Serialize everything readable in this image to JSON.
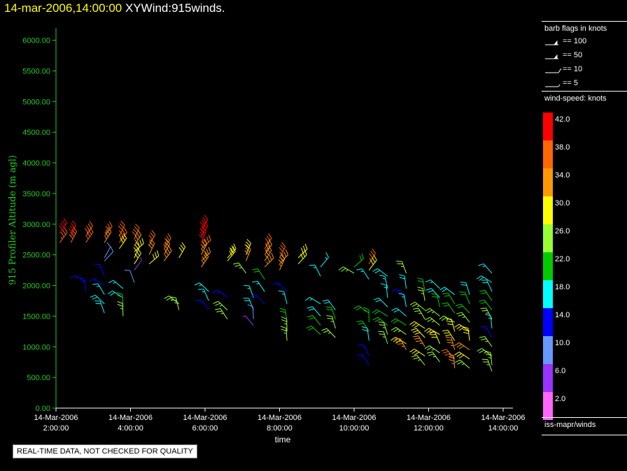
{
  "header": {
    "timestamp": "14-mar-2006,14:00:00",
    "product": "XYWind:915winds."
  },
  "colors": {
    "axis_y": "#22cc22",
    "axis_x": "#ffffff",
    "timestamp": "#ffff00",
    "background": "#000000"
  },
  "chart_data": {
    "type": "scatter",
    "ylabel": "915 Profiler Altitude (m agl)",
    "xlabel": "time",
    "ylim": [
      0,
      6200
    ],
    "y_ticks": [
      "0.00",
      "500.00",
      "1000.00",
      "1500.00",
      "2000.00",
      "2500.00",
      "3000.00",
      "3500.00",
      "4000.00",
      "4500.00",
      "5000.00",
      "5500.00",
      "6000.00"
    ],
    "x_ticks": [
      {
        "date": "14-Mar-2006",
        "time": "2:00:00"
      },
      {
        "date": "14-Mar-2006",
        "time": "4:00:00"
      },
      {
        "date": "14-Mar-2006",
        "time": "6:00:00"
      },
      {
        "date": "14-Mar-2006",
        "time": "8:00:00"
      },
      {
        "date": "14-Mar-2006",
        "time": "10:00:00"
      },
      {
        "date": "14-Mar-2006",
        "time": "12:00:00"
      },
      {
        "date": "14-Mar-2006",
        "time": "14:00:00"
      }
    ],
    "xlim_hours": [
      2.0,
      14.5
    ],
    "profiles": [
      {
        "t": 2.1,
        "levels": [
          [
            2850,
            40
          ],
          [
            2700,
            36
          ]
        ]
      },
      {
        "t": 2.4,
        "levels": [
          [
            2800,
            42
          ],
          [
            2700,
            38
          ]
        ]
      },
      {
        "t": 2.8,
        "levels": [
          [
            2800,
            38
          ],
          [
            2700,
            36
          ]
        ]
      },
      {
        "t": 2.8,
        "levels": [
          [
            2050,
            14
          ],
          [
            1900,
            14
          ]
        ]
      },
      {
        "t": 3.3,
        "levels": [
          [
            2800,
            36
          ],
          [
            2700,
            35
          ],
          [
            2450,
            8
          ],
          [
            2400,
            8
          ],
          [
            2150,
            14
          ],
          [
            2000,
            15
          ],
          [
            1850,
            16
          ],
          [
            1700,
            18
          ],
          [
            1550,
            18
          ]
        ]
      },
      {
        "t": 3.7,
        "levels": [
          [
            2800,
            36
          ],
          [
            2700,
            38
          ],
          [
            2600,
            30
          ]
        ]
      },
      {
        "t": 3.8,
        "levels": [
          [
            1950,
            16
          ],
          [
            1800,
            18
          ],
          [
            1650,
            22
          ],
          [
            1500,
            24
          ]
        ]
      },
      {
        "t": 4.1,
        "levels": [
          [
            2750,
            38
          ],
          [
            2650,
            34
          ],
          [
            2550,
            30
          ],
          [
            2450,
            30
          ],
          [
            2350,
            28
          ],
          [
            2250,
            6
          ],
          [
            2050,
            8
          ]
        ]
      },
      {
        "t": 4.5,
        "levels": [
          [
            2650,
            36
          ],
          [
            2500,
            32
          ],
          [
            2350,
            30
          ]
        ]
      },
      {
        "t": 4.9,
        "levels": [
          [
            2600,
            36
          ],
          [
            2500,
            34
          ],
          [
            2400,
            34
          ]
        ]
      },
      {
        "t": 5.3,
        "levels": [
          [
            2450,
            30
          ],
          [
            1700,
            24
          ],
          [
            1600,
            24
          ]
        ]
      },
      {
        "t": 5.9,
        "levels": [
          [
            2900,
            40
          ],
          [
            2800,
            42
          ],
          [
            2700,
            40
          ],
          [
            2600,
            38
          ],
          [
            2500,
            34
          ],
          [
            2400,
            32
          ],
          [
            2300,
            34
          ]
        ]
      },
      {
        "t": 6.1,
        "levels": [
          [
            1900,
            16
          ],
          [
            1750,
            16
          ],
          [
            1600,
            14
          ]
        ]
      },
      {
        "t": 6.6,
        "levels": [
          [
            2450,
            30
          ],
          [
            2400,
            28
          ],
          [
            1800,
            14
          ],
          [
            1600,
            24
          ],
          [
            1450,
            24
          ]
        ]
      },
      {
        "t": 7.1,
        "levels": [
          [
            2500,
            30
          ],
          [
            2400,
            32
          ],
          [
            2200,
            26
          ]
        ]
      },
      {
        "t": 7.3,
        "levels": [
          [
            1800,
            16
          ],
          [
            1600,
            18
          ],
          [
            1450,
            8
          ],
          [
            1350,
            6
          ]
        ]
      },
      {
        "t": 7.6,
        "levels": [
          [
            2600,
            36
          ],
          [
            2500,
            34
          ],
          [
            2400,
            34
          ],
          [
            2300,
            34
          ],
          [
            2100,
            22
          ],
          [
            1900,
            16
          ],
          [
            1700,
            14
          ]
        ]
      },
      {
        "t": 8.0,
        "levels": [
          [
            2450,
            36
          ],
          [
            2350,
            34
          ],
          [
            2250,
            34
          ]
        ]
      },
      {
        "t": 8.2,
        "levels": [
          [
            1900,
            14
          ],
          [
            1700,
            16
          ],
          [
            1400,
            22
          ],
          [
            1250,
            24
          ],
          [
            1100,
            24
          ]
        ]
      },
      {
        "t": 8.5,
        "levels": [
          [
            2450,
            30
          ],
          [
            2350,
            30
          ]
        ]
      },
      {
        "t": 9.1,
        "levels": [
          [
            2300,
            16
          ],
          [
            2150,
            16
          ],
          [
            1700,
            16
          ],
          [
            1500,
            18
          ],
          [
            1350,
            20
          ],
          [
            1200,
            22
          ]
        ]
      },
      {
        "t": 9.5,
        "levels": [
          [
            1600,
            18
          ],
          [
            1450,
            22
          ],
          [
            1300,
            24
          ],
          [
            1150,
            26
          ]
        ]
      },
      {
        "t": 10.0,
        "levels": [
          [
            2300,
            22
          ],
          [
            2200,
            24
          ]
        ]
      },
      {
        "t": 10.4,
        "levels": [
          [
            2350,
            36
          ],
          [
            2250,
            30
          ],
          [
            2100,
            16
          ]
        ]
      },
      {
        "t": 10.4,
        "levels": [
          [
            1550,
            20
          ],
          [
            1400,
            22
          ],
          [
            1250,
            22
          ],
          [
            1100,
            18
          ],
          [
            850,
            14
          ],
          [
            700,
            14
          ]
        ]
      },
      {
        "t": 10.9,
        "levels": [
          [
            2150,
            18
          ],
          [
            1950,
            16
          ],
          [
            1800,
            16
          ],
          [
            1650,
            18
          ],
          [
            1500,
            20
          ],
          [
            1350,
            22
          ],
          [
            1200,
            24
          ],
          [
            1050,
            24
          ]
        ]
      },
      {
        "t": 11.4,
        "levels": [
          [
            2200,
            26
          ],
          [
            1950,
            18
          ],
          [
            1800,
            14
          ],
          [
            1650,
            16
          ],
          [
            1500,
            18
          ],
          [
            1350,
            22
          ],
          [
            1200,
            26
          ],
          [
            1050,
            30
          ],
          [
            950,
            34
          ]
        ]
      },
      {
        "t": 11.9,
        "levels": [
          [
            1900,
            22
          ],
          [
            1750,
            24
          ],
          [
            1600,
            24
          ],
          [
            1450,
            26
          ],
          [
            1300,
            28
          ],
          [
            1150,
            30
          ],
          [
            1000,
            34
          ],
          [
            850,
            28
          ],
          [
            700,
            24
          ]
        ]
      },
      {
        "t": 12.3,
        "levels": [
          [
            1950,
            16
          ],
          [
            1800,
            18
          ],
          [
            1650,
            22
          ],
          [
            1500,
            24
          ],
          [
            1350,
            26
          ],
          [
            1200,
            28
          ],
          [
            1050,
            30
          ],
          [
            900,
            26
          ],
          [
            750,
            24
          ]
        ]
      },
      {
        "t": 12.7,
        "levels": [
          [
            1850,
            18
          ],
          [
            1700,
            20
          ],
          [
            1550,
            22
          ],
          [
            1400,
            24
          ],
          [
            1250,
            28
          ],
          [
            1100,
            30
          ],
          [
            950,
            34
          ],
          [
            800,
            36
          ],
          [
            650,
            34
          ]
        ]
      },
      {
        "t": 13.1,
        "levels": [
          [
            1850,
            18
          ],
          [
            1700,
            20
          ],
          [
            1550,
            22
          ],
          [
            1400,
            26
          ],
          [
            1250,
            28
          ],
          [
            1100,
            30
          ],
          [
            950,
            32
          ],
          [
            800,
            28
          ],
          [
            650,
            26
          ]
        ]
      },
      {
        "t": 13.7,
        "levels": [
          [
            2200,
            16
          ],
          [
            2050,
            18
          ],
          [
            1900,
            18
          ],
          [
            1750,
            20
          ],
          [
            1600,
            22
          ],
          [
            1450,
            24
          ],
          [
            1300,
            16
          ],
          [
            1150,
            14
          ],
          [
            1000,
            24
          ],
          [
            850,
            26
          ],
          [
            700,
            26
          ],
          [
            600,
            26
          ]
        ]
      }
    ]
  },
  "legend": {
    "barb_title": "barb flags in knots",
    "barbs": [
      {
        "label": "== 100",
        "kind": "flag"
      },
      {
        "label": "== 50",
        "kind": "flag"
      },
      {
        "label": "== 10",
        "kind": "full"
      },
      {
        "label": "== 5",
        "kind": "half"
      }
    ],
    "speed_title": "wind-speed: knots",
    "speed_scale": [
      {
        "label": "42.0",
        "color": "#ff0000"
      },
      {
        "label": "38.0",
        "color": "#ff6600"
      },
      {
        "label": "34.0",
        "color": "#ff9900"
      },
      {
        "label": "30.0",
        "color": "#ffff00"
      },
      {
        "label": "26.0",
        "color": "#99ff33"
      },
      {
        "label": "22.0",
        "color": "#00cc00"
      },
      {
        "label": "18.0",
        "color": "#00ffff"
      },
      {
        "label": "14.0",
        "color": "#0000ff"
      },
      {
        "label": "10.0",
        "color": "#6699ff"
      },
      {
        "label": "6.0",
        "color": "#9933ff"
      },
      {
        "label": "2.0",
        "color": "#ff66ff"
      }
    ],
    "source": "iss-mapr/winds"
  },
  "qc_notice": "REAL-TIME DATA, NOT CHECKED FOR QUALITY"
}
